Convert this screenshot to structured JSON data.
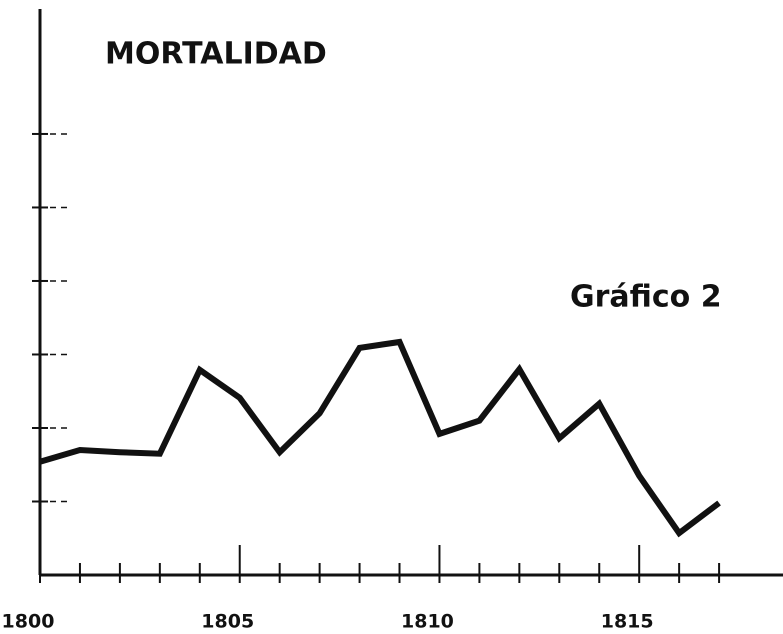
{
  "chart_data": {
    "type": "line",
    "title": "MORTALIDAD",
    "annotation": "Gráfico 2",
    "x": [
      1800,
      1801,
      1802,
      1803,
      1804,
      1805,
      1806,
      1807,
      1808,
      1809,
      1810,
      1811,
      1812,
      1813,
      1814,
      1815,
      1816,
      1817
    ],
    "series": [
      {
        "name": "Mortalidad",
        "color": "#111111",
        "values": [
          1.54,
          1.7,
          1.67,
          1.65,
          2.79,
          2.41,
          1.67,
          2.2,
          3.09,
          3.17,
          1.92,
          2.1,
          2.8,
          1.86,
          2.33,
          1.35,
          0.57,
          0.98
        ]
      }
    ],
    "xlim": [
      1800,
      1818.6
    ],
    "xticks": [
      1800,
      1805,
      1810,
      1815
    ],
    "xminorticks": [
      1801,
      1802,
      1803,
      1804,
      1806,
      1807,
      1808,
      1809,
      1811,
      1812,
      1813,
      1814,
      1816,
      1817
    ],
    "ylim": [
      0,
      7.7
    ],
    "yticks": [
      1,
      2,
      3,
      4,
      5,
      6
    ],
    "grid": true,
    "legend": false
  }
}
